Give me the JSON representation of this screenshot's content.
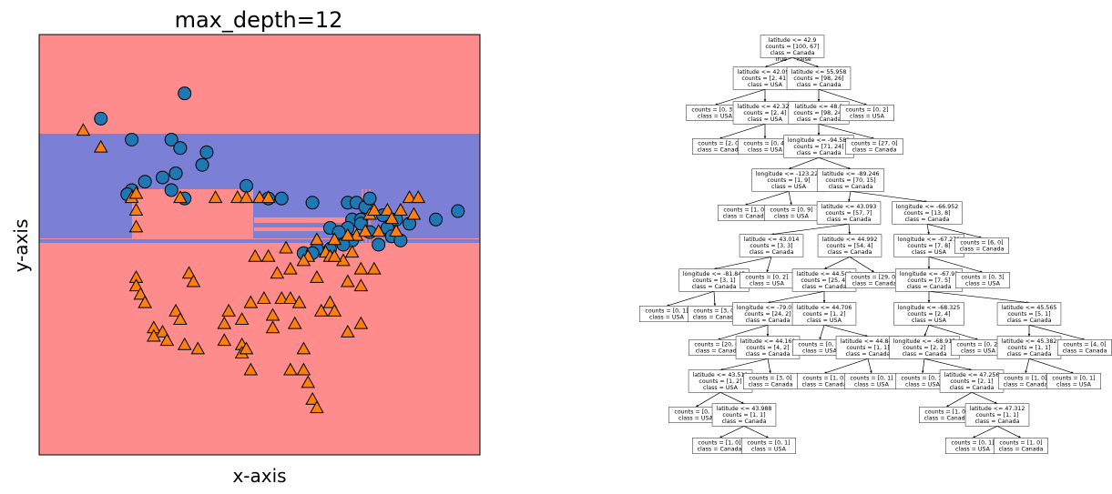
{
  "chart_data": [
    {
      "type": "scatter",
      "title": "max_depth=12",
      "xlabel": "x-axis",
      "ylabel": "y-axis",
      "xlim": [
        0,
        100
      ],
      "ylim": [
        0,
        100
      ],
      "grid": false,
      "ticks_visible": false,
      "colors": {
        "region_canada": "#ff8c8c",
        "region_usa": "#7b7fd5",
        "circle_class": "#1f77b4",
        "triangle_class": "#ff7f0e"
      },
      "series": [
        {
          "marker": "circle",
          "points": [
            [
              33,
              86
            ],
            [
              14,
              80
            ],
            [
              21,
              75
            ],
            [
              30,
              75
            ],
            [
              32,
              73
            ],
            [
              38,
              72
            ],
            [
              37,
              69
            ],
            [
              31,
              67
            ],
            [
              28,
              66
            ],
            [
              24,
              65
            ],
            [
              21,
              63
            ],
            [
              30,
              63
            ],
            [
              20,
              62
            ],
            [
              33,
              61
            ],
            [
              47,
              64
            ],
            [
              52,
              61
            ],
            [
              55,
              61
            ],
            [
              62,
              60
            ],
            [
              70,
              60
            ],
            [
              72,
              60
            ],
            [
              74,
              59
            ],
            [
              75,
              61
            ],
            [
              71,
              56
            ],
            [
              73,
              56
            ],
            [
              78,
              57
            ],
            [
              81,
              56
            ],
            [
              84,
              55
            ],
            [
              90,
              56
            ],
            [
              95,
              58
            ],
            [
              73,
              55
            ],
            [
              79,
              54
            ],
            [
              70,
              54
            ],
            [
              66,
              54
            ],
            [
              68,
              53
            ],
            [
              75,
              53
            ],
            [
              80,
              52
            ],
            [
              82,
              51
            ],
            [
              71,
              51
            ],
            [
              69,
              50
            ],
            [
              77,
              50
            ],
            [
              63,
              49
            ],
            [
              66,
              49
            ],
            [
              60,
              48
            ],
            [
              62,
              48
            ]
          ]
        },
        {
          "marker": "triangle",
          "points": [
            [
              10,
              77
            ],
            [
              14,
              73
            ],
            [
              21,
              61
            ],
            [
              22,
              62
            ],
            [
              22,
              58
            ],
            [
              22,
              54
            ],
            [
              32,
              61
            ],
            [
              40,
              61
            ],
            [
              45,
              61
            ],
            [
              47,
              61
            ],
            [
              50,
              61
            ],
            [
              52,
              61
            ],
            [
              84,
              61
            ],
            [
              75,
              57
            ],
            [
              76,
              58
            ],
            [
              79,
              58
            ],
            [
              82,
              58
            ],
            [
              81,
              53
            ],
            [
              77,
              53
            ],
            [
              72,
              52
            ],
            [
              70,
              52
            ],
            [
              67,
              51
            ],
            [
              63,
              51
            ],
            [
              65,
              48
            ],
            [
              61,
              47
            ],
            [
              56,
              49
            ],
            [
              52,
              47
            ],
            [
              49,
              47
            ],
            [
              66,
              47
            ],
            [
              69,
              46
            ],
            [
              73,
              44
            ],
            [
              76,
              44
            ],
            [
              86,
              61
            ],
            [
              85,
              57
            ],
            [
              80,
              56
            ],
            [
              74,
              53
            ],
            [
              71,
              48
            ],
            [
              67,
              47
            ],
            [
              60,
              46
            ],
            [
              57,
              44
            ],
            [
              54,
              43
            ],
            [
              63,
              42
            ],
            [
              70,
              41
            ],
            [
              73,
              40
            ],
            [
              34,
              43
            ],
            [
              35,
              41
            ],
            [
              22,
              42
            ],
            [
              22,
              40
            ],
            [
              23,
              38
            ],
            [
              24,
              36
            ],
            [
              31,
              34
            ],
            [
              48,
              36
            ],
            [
              51,
              37
            ],
            [
              55,
              37
            ],
            [
              57,
              37
            ],
            [
              59,
              36
            ],
            [
              66,
              36
            ],
            [
              67,
              34
            ],
            [
              64,
              34
            ],
            [
              43,
              34
            ],
            [
              32,
              32
            ],
            [
              46,
              32
            ],
            [
              53,
              33
            ],
            [
              26,
              30
            ],
            [
              28,
              29
            ],
            [
              42,
              31
            ],
            [
              53,
              30
            ],
            [
              58,
              31
            ],
            [
              70,
              29
            ],
            [
              73,
              31
            ],
            [
              26,
              28
            ],
            [
              29,
              27
            ],
            [
              33,
              26
            ],
            [
              36,
              25
            ],
            [
              42,
              27
            ],
            [
              46,
              26
            ],
            [
              60,
              25
            ],
            [
              46,
              24
            ],
            [
              57,
              20
            ],
            [
              60,
              20
            ],
            [
              61,
              17
            ],
            [
              62,
              13
            ],
            [
              63,
              11
            ],
            [
              48,
              20
            ],
            [
              47,
              25
            ]
          ]
        }
      ]
    },
    {
      "type": "diagram",
      "nodes": {
        "n0": [
          "latitude <= 42.9",
          "counts = [100, 67]",
          "class = Canada"
        ],
        "n1": [
          "latitude <= 42.096",
          "counts = [2, 41]",
          "class = USA"
        ],
        "n2": [
          "latitude <= 55.958",
          "counts = [98, 26]",
          "class = Canada"
        ],
        "n3": [
          "counts = [0, 37]",
          "class = USA"
        ],
        "n4": [
          "latitude <= 42.324",
          "counts = [2, 4]",
          "class = USA"
        ],
        "n5": [
          "latitude <= 48.0",
          "counts = [98, 24]",
          "class = Canada"
        ],
        "n6": [
          "counts = [0, 2]",
          "class = USA"
        ],
        "n7": [
          "counts = [2, 0]",
          "class = Canada"
        ],
        "n8": [
          "counts = [0, 4]",
          "class = USA"
        ],
        "n9": [
          "longitude <= -94.582",
          "counts = [71, 24]",
          "class = Canada"
        ],
        "n10": [
          "counts = [27, 0]",
          "class = Canada"
        ],
        "n11": [
          "longitude <= -123.222",
          "counts = [1, 9]",
          "class = USA"
        ],
        "n12": [
          "latitude <= -89.246",
          "counts = [70, 15]",
          "class = Canada"
        ],
        "n13": [
          "counts = [1, 0]",
          "class = Canada"
        ],
        "n14": [
          "counts = [0, 9]",
          "class = USA"
        ],
        "n15": [
          "latitude <= 43.093",
          "counts = [57, 7]",
          "class = Canada"
        ],
        "n16": [
          "longitude <= -66.952",
          "counts = [13, 8]",
          "class = Canada"
        ],
        "n17": [
          "latitude <= 43.014",
          "counts = [3, 3]",
          "class = Canada"
        ],
        "n18": [
          "latitude <= 44.992",
          "counts = [54, 4]",
          "class = Canada"
        ],
        "n19": [
          "longitude <= -67.279",
          "counts = [7, 8]",
          "class = USA"
        ],
        "n20": [
          "counts = [6, 0]",
          "class = Canada"
        ],
        "n21": [
          "longitude <= -81.845",
          "counts = [3, 1]",
          "class = Canada"
        ],
        "n22": [
          "counts = [0, 2]",
          "class = USA"
        ],
        "n23": [
          "latitude <= 44.542",
          "counts = [25, 4]",
          "class = Canada"
        ],
        "n24": [
          "counts = [29, 0]",
          "class = Canada"
        ],
        "n25": [
          "longitude <= -67.93",
          "counts = [7, 5]",
          "class = Canada"
        ],
        "n26": [
          "counts = [0, 3]",
          "class = USA"
        ],
        "n27": [
          "counts = [0, 1]",
          "class = USA"
        ],
        "n28": [
          "counts = [3, 0]",
          "class = Canada"
        ],
        "n29": [
          "longitude <= -79.076",
          "counts = [24, 2]",
          "class = Canada"
        ],
        "n30": [
          "latitude <= 44.706",
          "counts = [1, 2]",
          "class = USA"
        ],
        "n31": [
          "longitude <= -68.325",
          "counts = [2, 4]",
          "class = USA"
        ],
        "n32": [
          "latitude <= 45.565",
          "counts = [5, 1]",
          "class = Canada"
        ],
        "n33": [
          "counts = [20, 0]",
          "class = Canada"
        ],
        "n34": [
          "latitude <= 44.168",
          "counts = [4, 2]",
          "class = Canada"
        ],
        "n35": [
          "counts = [0, 1]",
          "class = USA"
        ],
        "n36": [
          "latitude <= 44.848",
          "counts = [1, 1]",
          "class = Canada"
        ],
        "n37": [
          "longitude <= -68.915",
          "counts = [2, 2]",
          "class = Canada"
        ],
        "n38": [
          "counts = [0, 2]",
          "class = USA"
        ],
        "n39": [
          "latitude <= 45.382",
          "counts = [1, 1]",
          "class = Canada"
        ],
        "n40": [
          "counts = [4, 0]",
          "class = Canada"
        ],
        "n41": [
          "latitude <= 43.511",
          "counts = [1, 2]",
          "class = USA"
        ],
        "n42": [
          "counts = [3, 0]",
          "class = Canada"
        ],
        "n43": [
          "counts = [1, 0]",
          "class = Canada"
        ],
        "n44": [
          "counts = [0, 1]",
          "class = USA"
        ],
        "n45": [
          "counts = [0, 1]",
          "class = USA"
        ],
        "n46": [
          "latitude <= 47.256",
          "counts = [2, 1]",
          "class = Canada"
        ],
        "n47": [
          "counts = [1, 0]",
          "class = Canada"
        ],
        "n48": [
          "counts = [0, 1]",
          "class = USA"
        ],
        "n49": [
          "counts = [0, 1]",
          "class = USA"
        ],
        "n50": [
          "latitude <= 43.988",
          "counts = [1, 1]",
          "class = Canada"
        ],
        "n51": [
          "counts = [1, 0]",
          "class = Canada"
        ],
        "n52": [
          "latitude <= 47.312",
          "counts = [1, 1]",
          "class = Canada"
        ],
        "n53": [
          "counts = [1, 0]",
          "class = Canada"
        ],
        "n54": [
          "counts = [0, 1]",
          "class = USA"
        ],
        "n55": [
          "counts = [0, 1]",
          "class = USA"
        ],
        "n56": [
          "counts = [1, 0]",
          "class = Canada"
        ]
      },
      "edges": [
        [
          "n0",
          "n1"
        ],
        [
          "n0",
          "n2"
        ],
        [
          "n1",
          "n3"
        ],
        [
          "n1",
          "n4"
        ],
        [
          "n2",
          "n5"
        ],
        [
          "n2",
          "n6"
        ],
        [
          "n4",
          "n7"
        ],
        [
          "n4",
          "n8"
        ],
        [
          "n5",
          "n9"
        ],
        [
          "n5",
          "n10"
        ],
        [
          "n9",
          "n11"
        ],
        [
          "n9",
          "n12"
        ],
        [
          "n11",
          "n13"
        ],
        [
          "n11",
          "n14"
        ],
        [
          "n12",
          "n15"
        ],
        [
          "n12",
          "n16"
        ],
        [
          "n15",
          "n17"
        ],
        [
          "n15",
          "n18"
        ],
        [
          "n16",
          "n19"
        ],
        [
          "n16",
          "n20"
        ],
        [
          "n17",
          "n21"
        ],
        [
          "n17",
          "n22"
        ],
        [
          "n18",
          "n23"
        ],
        [
          "n18",
          "n24"
        ],
        [
          "n19",
          "n25"
        ],
        [
          "n19",
          "n26"
        ],
        [
          "n21",
          "n27"
        ],
        [
          "n21",
          "n28"
        ],
        [
          "n23",
          "n29"
        ],
        [
          "n23",
          "n30"
        ],
        [
          "n25",
          "n31"
        ],
        [
          "n25",
          "n32"
        ],
        [
          "n29",
          "n33"
        ],
        [
          "n29",
          "n34"
        ],
        [
          "n30",
          "n35"
        ],
        [
          "n30",
          "n36"
        ],
        [
          "n31",
          "n37"
        ],
        [
          "n31",
          "n38"
        ],
        [
          "n32",
          "n39"
        ],
        [
          "n32",
          "n40"
        ],
        [
          "n34",
          "n41"
        ],
        [
          "n34",
          "n42"
        ],
        [
          "n36",
          "n43"
        ],
        [
          "n36",
          "n44"
        ],
        [
          "n37",
          "n45"
        ],
        [
          "n37",
          "n46"
        ],
        [
          "n39",
          "n47"
        ],
        [
          "n39",
          "n48"
        ],
        [
          "n41",
          "n49"
        ],
        [
          "n41",
          "n50"
        ],
        [
          "n46",
          "n51"
        ],
        [
          "n46",
          "n52"
        ],
        [
          "n50",
          "n53"
        ],
        [
          "n50",
          "n54"
        ],
        [
          "n52",
          "n55"
        ],
        [
          "n52",
          "n56"
        ]
      ],
      "edge_labels": {
        "left": "True",
        "right": "False"
      }
    }
  ]
}
